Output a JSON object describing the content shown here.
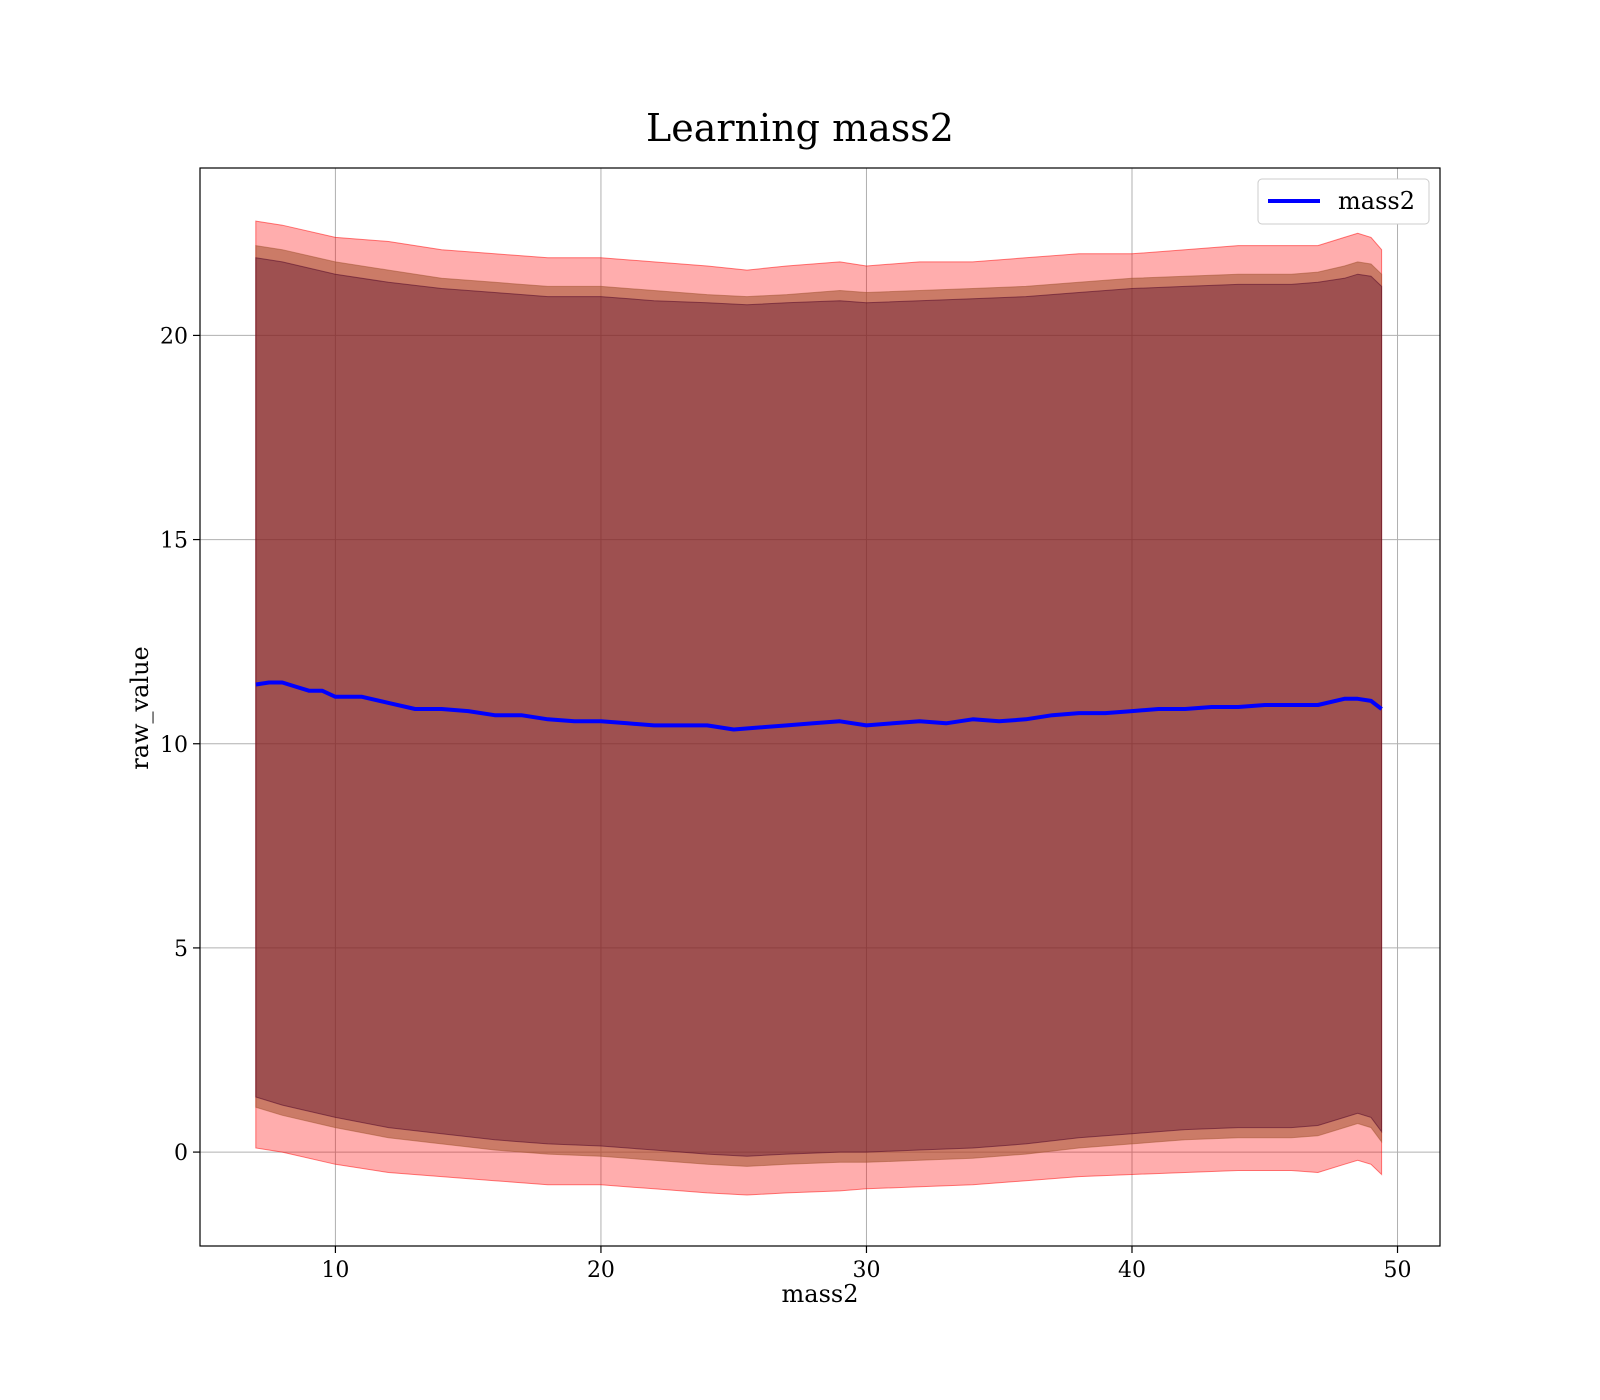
{
  "chart_data": {
    "type": "line",
    "title": "Learning mass2",
    "xlabel": "mass2",
    "ylabel": "raw_value",
    "xlim": [
      4.9,
      51.6
    ],
    "ylim": [
      -2.3,
      24.1
    ],
    "xticks": [
      10,
      20,
      30,
      40,
      50
    ],
    "yticks": [
      0,
      5,
      10,
      15,
      20
    ],
    "grid": true,
    "legend_position": "top-right",
    "colors": {
      "line": "#0000ff",
      "band_outer": "#ff0000",
      "band_middle": "#a0522d",
      "band_inner": "#4b0026"
    },
    "series": [
      {
        "name": "mass2",
        "x": [
          7.0,
          7.5,
          8.0,
          8.5,
          9.0,
          9.5,
          10.0,
          11.0,
          12.0,
          13.0,
          14.0,
          15.0,
          16.0,
          17.0,
          18.0,
          19.0,
          20.0,
          21.0,
          22.0,
          23.0,
          24.0,
          25.0,
          26.0,
          27.0,
          28.0,
          29.0,
          30.0,
          31.0,
          32.0,
          33.0,
          34.0,
          35.0,
          36.0,
          37.0,
          38.0,
          39.0,
          40.0,
          41.0,
          42.0,
          43.0,
          44.0,
          45.0,
          46.0,
          47.0,
          48.0,
          48.5,
          49.0,
          49.4
        ],
        "y": [
          11.45,
          11.5,
          11.5,
          11.4,
          11.3,
          11.3,
          11.15,
          11.15,
          11.0,
          10.85,
          10.85,
          10.8,
          10.7,
          10.7,
          10.6,
          10.55,
          10.55,
          10.5,
          10.45,
          10.45,
          10.45,
          10.35,
          10.4,
          10.45,
          10.5,
          10.55,
          10.45,
          10.5,
          10.55,
          10.5,
          10.6,
          10.55,
          10.6,
          10.7,
          10.75,
          10.75,
          10.8,
          10.85,
          10.85,
          10.9,
          10.9,
          10.95,
          10.95,
          10.95,
          11.1,
          11.1,
          11.05,
          10.85
        ]
      }
    ],
    "bands": [
      {
        "level": "outer",
        "x": [
          7.0,
          8.0,
          10.0,
          12.0,
          14.0,
          16.0,
          18.0,
          20.0,
          22.0,
          24.0,
          25.5,
          27.0,
          29.0,
          30.0,
          32.0,
          34.0,
          36.0,
          38.0,
          40.0,
          42.0,
          44.0,
          46.0,
          47.0,
          48.0,
          48.5,
          49.0,
          49.4
        ],
        "upper": [
          22.8,
          22.7,
          22.4,
          22.3,
          22.1,
          22.0,
          21.9,
          21.9,
          21.8,
          21.7,
          21.6,
          21.7,
          21.8,
          21.7,
          21.8,
          21.8,
          21.9,
          22.0,
          22.0,
          22.1,
          22.2,
          22.2,
          22.2,
          22.4,
          22.5,
          22.4,
          22.1
        ],
        "lower": [
          0.1,
          0.0,
          -0.3,
          -0.5,
          -0.6,
          -0.7,
          -0.8,
          -0.8,
          -0.9,
          -1.0,
          -1.05,
          -1.0,
          -0.95,
          -0.9,
          -0.85,
          -0.8,
          -0.7,
          -0.6,
          -0.55,
          -0.5,
          -0.45,
          -0.45,
          -0.5,
          -0.3,
          -0.2,
          -0.3,
          -0.55
        ]
      },
      {
        "level": "middle",
        "x": [
          7.0,
          8.0,
          10.0,
          12.0,
          14.0,
          16.0,
          18.0,
          20.0,
          22.0,
          24.0,
          25.5,
          27.0,
          29.0,
          30.0,
          32.0,
          34.0,
          36.0,
          38.0,
          40.0,
          42.0,
          44.0,
          46.0,
          47.0,
          48.0,
          48.5,
          49.0,
          49.4
        ],
        "upper": [
          22.2,
          22.1,
          21.8,
          21.6,
          21.4,
          21.3,
          21.2,
          21.2,
          21.1,
          21.0,
          20.95,
          21.0,
          21.1,
          21.05,
          21.1,
          21.15,
          21.2,
          21.3,
          21.4,
          21.45,
          21.5,
          21.5,
          21.55,
          21.7,
          21.8,
          21.75,
          21.5
        ],
        "lower": [
          1.1,
          0.9,
          0.6,
          0.35,
          0.2,
          0.05,
          -0.05,
          -0.1,
          -0.2,
          -0.3,
          -0.35,
          -0.3,
          -0.25,
          -0.25,
          -0.2,
          -0.15,
          -0.05,
          0.1,
          0.2,
          0.3,
          0.35,
          0.35,
          0.4,
          0.6,
          0.7,
          0.6,
          0.25
        ]
      },
      {
        "level": "inner",
        "x": [
          7.0,
          8.0,
          10.0,
          12.0,
          14.0,
          16.0,
          18.0,
          20.0,
          22.0,
          24.0,
          25.5,
          27.0,
          29.0,
          30.0,
          32.0,
          34.0,
          36.0,
          38.0,
          40.0,
          42.0,
          44.0,
          46.0,
          47.0,
          48.0,
          48.5,
          49.0,
          49.4
        ],
        "upper": [
          21.9,
          21.8,
          21.5,
          21.3,
          21.15,
          21.05,
          20.95,
          20.95,
          20.85,
          20.8,
          20.75,
          20.8,
          20.85,
          20.8,
          20.85,
          20.9,
          20.95,
          21.05,
          21.15,
          21.2,
          21.25,
          21.25,
          21.3,
          21.4,
          21.5,
          21.45,
          21.2
        ],
        "lower": [
          1.35,
          1.15,
          0.85,
          0.6,
          0.45,
          0.3,
          0.2,
          0.15,
          0.05,
          -0.05,
          -0.1,
          -0.05,
          0.0,
          0.0,
          0.05,
          0.1,
          0.2,
          0.35,
          0.45,
          0.55,
          0.6,
          0.6,
          0.65,
          0.85,
          0.95,
          0.85,
          0.5
        ]
      }
    ]
  }
}
